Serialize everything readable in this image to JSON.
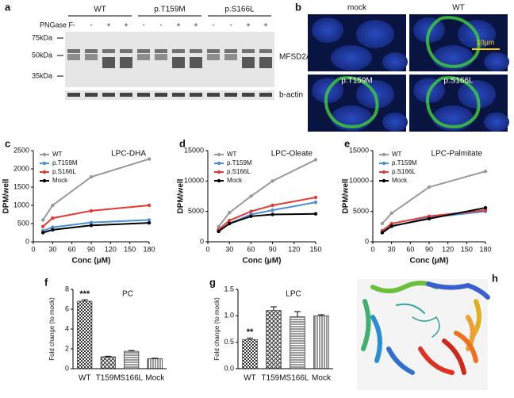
{
  "panel_a": {
    "label": "a",
    "groups": [
      "WT",
      "p.T159M",
      "p.S166L"
    ],
    "treatment": "PNGase F",
    "lanes": [
      "-",
      "-",
      "+",
      "+",
      "-",
      "-",
      "+",
      "+",
      "-",
      "-",
      "+",
      "+"
    ],
    "markers": [
      "75kDa",
      "50kDa",
      "35kDa"
    ],
    "bands": [
      "MFSD2A",
      "b-actin"
    ]
  },
  "panel_b": {
    "label": "b",
    "images": [
      "mock",
      "WT",
      "p.T159M",
      "p.S166L"
    ],
    "scale_bar": "10μm"
  },
  "panel_h": {
    "label": "h"
  },
  "chart_data": [
    {
      "type": "line",
      "panel": "c",
      "title": "LPC-DHA",
      "x_label": "Conc (μM)",
      "y_label": "DPM/well",
      "x": [
        15,
        30,
        90,
        180
      ],
      "xlim": [
        0,
        180
      ],
      "xticks": [
        0,
        30,
        60,
        90,
        120,
        150,
        180
      ],
      "ylim": [
        0,
        2500
      ],
      "yticks": [
        0,
        500,
        1000,
        1500,
        2000,
        2500
      ],
      "series": [
        {
          "name": "WT",
          "color": "#999999",
          "values": [
            600,
            1000,
            1780,
            2270
          ]
        },
        {
          "name": "p.T159M",
          "color": "#4a8fd8",
          "values": [
            300,
            400,
            530,
            600
          ]
        },
        {
          "name": "p.S166L",
          "color": "#e53935",
          "values": [
            420,
            650,
            850,
            1000
          ]
        },
        {
          "name": "Mock",
          "color": "#000000",
          "values": [
            250,
            330,
            450,
            520
          ]
        }
      ]
    },
    {
      "type": "line",
      "panel": "d",
      "title": "LPC-Oleate",
      "x_label": "Conc (μM)",
      "y_label": "DPM/well",
      "x": [
        15,
        30,
        60,
        90,
        150
      ],
      "xlim": [
        0,
        150
      ],
      "xticks": [
        0,
        30,
        60,
        90,
        120,
        150
      ],
      "ylim": [
        0,
        15000
      ],
      "yticks": [
        0,
        5000,
        10000,
        15000
      ],
      "series": [
        {
          "name": "WT",
          "color": "#999999",
          "values": [
            2500,
            4800,
            7500,
            10000,
            13500
          ]
        },
        {
          "name": "p.T159M",
          "color": "#4a8fd8",
          "values": [
            1800,
            3000,
            4500,
            5200,
            6500
          ]
        },
        {
          "name": "p.S166L",
          "color": "#e53935",
          "values": [
            2000,
            3500,
            5000,
            6000,
            7300
          ]
        },
        {
          "name": "Mock",
          "color": "#000000",
          "values": [
            1700,
            3000,
            4200,
            4500,
            4600
          ]
        }
      ]
    },
    {
      "type": "line",
      "panel": "e",
      "title": "LPC-Palmitate",
      "x_label": "Conc (μM)",
      "y_label": "DPM/well",
      "x": [
        15,
        30,
        90,
        180
      ],
      "xlim": [
        0,
        180
      ],
      "xticks": [
        0,
        30,
        60,
        90,
        120,
        150,
        180
      ],
      "ylim": [
        0,
        15000
      ],
      "yticks": [
        0,
        5000,
        10000,
        15000
      ],
      "series": [
        {
          "name": "WT",
          "color": "#999999",
          "values": [
            3000,
            4700,
            9000,
            11600
          ]
        },
        {
          "name": "p.T159M",
          "color": "#4a8fd8",
          "values": [
            1500,
            2500,
            4000,
            5000
          ]
        },
        {
          "name": "p.S166L",
          "color": "#e53935",
          "values": [
            1800,
            3000,
            4200,
            5200
          ]
        },
        {
          "name": "Mock",
          "color": "#000000",
          "values": [
            1500,
            2600,
            3800,
            5600
          ]
        }
      ]
    },
    {
      "type": "bar",
      "panel": "f",
      "title": "PC",
      "y_label": "Fold change (to mock)",
      "categories": [
        "WT",
        "T159M",
        "S166L",
        "Mock"
      ],
      "values": [
        6.8,
        1.2,
        1.75,
        1.0
      ],
      "errors": [
        0.15,
        0.05,
        0.08,
        0.05
      ],
      "annotation": "***",
      "ylim": [
        0,
        8
      ],
      "yticks": [
        0,
        2,
        4,
        6,
        8
      ]
    },
    {
      "type": "bar",
      "panel": "g",
      "title": "LPC",
      "y_label": "Fold change (to mock)",
      "categories": [
        "WT",
        "T159M",
        "S166L",
        "Mock"
      ],
      "values": [
        0.55,
        1.1,
        0.98,
        1.0
      ],
      "errors": [
        0.03,
        0.07,
        0.1,
        0.02
      ],
      "annotation": "**",
      "ylim": [
        0,
        1.5
      ],
      "yticks": [
        {
          "value": 0,
          "label": "0.0"
        },
        0.5,
        {
          "value": 1,
          "label": "1.0"
        },
        1.5
      ]
    }
  ]
}
